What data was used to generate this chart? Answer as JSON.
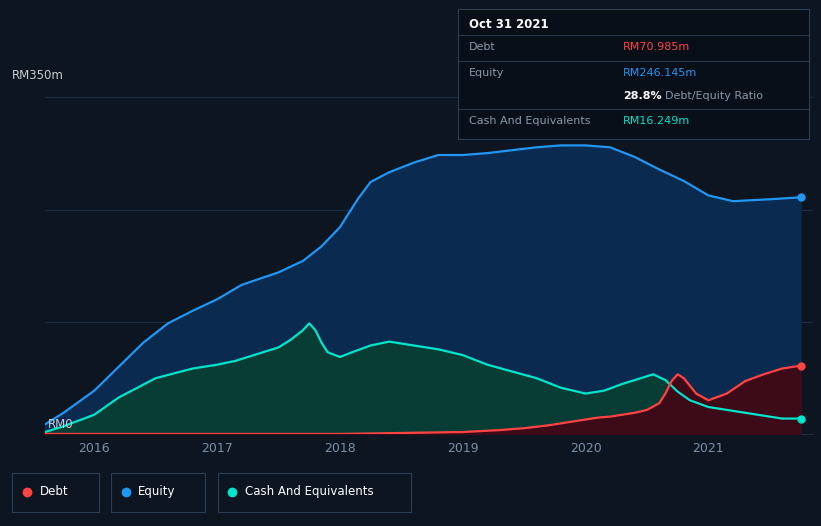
{
  "bg_color": "#0d1521",
  "plot_bg_color": "#0d1521",
  "grid_color": "#1a2d42",
  "title_box": {
    "date": "Oct 31 2021",
    "debt_label": "Debt",
    "debt_value": "RM70.985m",
    "debt_color": "#ff4444",
    "equity_label": "Equity",
    "equity_value": "RM246.145m",
    "equity_color": "#2196f3",
    "ratio_value": "28.8%",
    "ratio_label": "Debt/Equity Ratio",
    "cash_label": "Cash And Equivalents",
    "cash_value": "RM16.249m",
    "cash_color": "#00e5cc",
    "box_bg": "#080f18",
    "box_border": "#2a3f55",
    "label_color": "#8899aa"
  },
  "ylim": [
    0,
    350
  ],
  "ylabel_text": "RM350m",
  "ylabel0_text": "RM0",
  "x_ticks": [
    "2016",
    "2017",
    "2018",
    "2019",
    "2020",
    "2021"
  ],
  "x_tick_pos": [
    2016,
    2017,
    2018,
    2019,
    2020,
    2021
  ],
  "legend": {
    "debt_label": "Debt",
    "equity_label": "Equity",
    "cash_label": "Cash And Equivalents",
    "debt_color": "#ff4444",
    "equity_color": "#2196f3",
    "cash_color": "#00e5cc"
  },
  "equity_fill_color": "#0a2a50",
  "cash_fill_color": "#073d35",
  "debt_fill_color": "#3d0a18",
  "equity_x": [
    2015.6,
    2015.75,
    2016.0,
    2016.2,
    2016.4,
    2016.6,
    2016.8,
    2017.0,
    2017.2,
    2017.5,
    2017.7,
    2017.85,
    2018.0,
    2018.15,
    2018.25,
    2018.4,
    2018.6,
    2018.8,
    2019.0,
    2019.2,
    2019.4,
    2019.6,
    2019.8,
    2020.0,
    2020.2,
    2020.4,
    2020.6,
    2020.8,
    2021.0,
    2021.2,
    2021.5,
    2021.75
  ],
  "equity_y": [
    10,
    22,
    45,
    70,
    95,
    115,
    128,
    140,
    155,
    168,
    180,
    195,
    215,
    245,
    262,
    272,
    282,
    290,
    290,
    292,
    295,
    298,
    300,
    300,
    298,
    288,
    275,
    263,
    248,
    242,
    244,
    246
  ],
  "cash_x": [
    2015.6,
    2015.75,
    2016.0,
    2016.2,
    2016.5,
    2016.8,
    2017.0,
    2017.15,
    2017.3,
    2017.5,
    2017.6,
    2017.7,
    2017.75,
    2017.8,
    2017.85,
    2017.9,
    2018.0,
    2018.1,
    2018.25,
    2018.4,
    2018.6,
    2018.8,
    2019.0,
    2019.2,
    2019.4,
    2019.6,
    2019.8,
    2020.0,
    2020.15,
    2020.3,
    2020.45,
    2020.55,
    2020.65,
    2020.75,
    2020.85,
    2021.0,
    2021.3,
    2021.6,
    2021.75
  ],
  "cash_y": [
    2,
    8,
    20,
    38,
    58,
    68,
    72,
    76,
    82,
    90,
    98,
    108,
    115,
    108,
    95,
    85,
    80,
    85,
    92,
    96,
    92,
    88,
    82,
    72,
    65,
    58,
    48,
    42,
    45,
    52,
    58,
    62,
    56,
    44,
    35,
    28,
    22,
    16,
    16
  ],
  "debt_x": [
    2015.6,
    2016.0,
    2017.0,
    2018.0,
    2019.0,
    2019.3,
    2019.5,
    2019.7,
    2019.85,
    2020.0,
    2020.1,
    2020.2,
    2020.3,
    2020.4,
    2020.5,
    2020.6,
    2020.65,
    2020.7,
    2020.75,
    2020.8,
    2020.9,
    2021.0,
    2021.15,
    2021.3,
    2021.45,
    2021.6,
    2021.75
  ],
  "debt_y": [
    0,
    0,
    0,
    0,
    2,
    4,
    6,
    9,
    12,
    15,
    17,
    18,
    20,
    22,
    25,
    32,
    42,
    55,
    62,
    58,
    42,
    35,
    42,
    55,
    62,
    68,
    71
  ]
}
